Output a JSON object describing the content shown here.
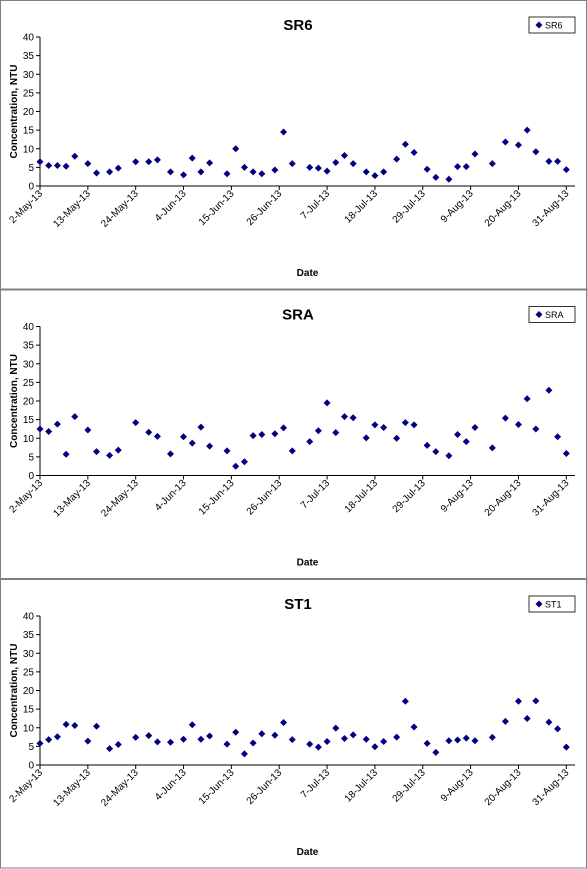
{
  "chart_data": [
    {
      "type": "scatter",
      "title": "SR6",
      "x_label": "Date",
      "y_label": "Concentration, NTU",
      "x": [
        "2-May-13",
        "4-May-13",
        "6-May-13",
        "8-May-13",
        "10-May-13",
        "13-May-13",
        "15-May-13",
        "18-May-13",
        "20-May-13",
        "24-May-13",
        "27-May-13",
        "29-May-13",
        "1-Jun-13",
        "4-Jun-13",
        "6-Jun-13",
        "8-Jun-13",
        "10-Jun-13",
        "14-Jun-13",
        "16-Jun-13",
        "18-Jun-13",
        "20-Jun-13",
        "22-Jun-13",
        "25-Jun-13",
        "27-Jun-13",
        "29-Jun-13",
        "3-Jul-13",
        "5-Jul-13",
        "7-Jul-13",
        "9-Jul-13",
        "11-Jul-13",
        "13-Jul-13",
        "16-Jul-13",
        "18-Jul-13",
        "20-Jul-13",
        "23-Jul-13",
        "25-Jul-13",
        "27-Jul-13",
        "30-Jul-13",
        "1-Aug-13",
        "4-Aug-13",
        "6-Aug-13",
        "8-Aug-13",
        "10-Aug-13",
        "14-Aug-13",
        "17-Aug-13",
        "20-Aug-13",
        "22-Aug-13",
        "24-Aug-13",
        "27-Aug-13",
        "29-Aug-13",
        "31-Aug-13"
      ],
      "series": [
        {
          "name": "SR6",
          "color": "#000080",
          "values": [
            6.5,
            5.5,
            5.5,
            5.3,
            8,
            6,
            3.5,
            3.8,
            4.8,
            6.5,
            6.5,
            7,
            3.8,
            3,
            7.5,
            3.8,
            6.2,
            3.3,
            10,
            5,
            3.8,
            3.3,
            4.3,
            14.5,
            6,
            5,
            4.8,
            4,
            6.3,
            8.2,
            6,
            3.8,
            2.8,
            3.8,
            7.2,
            11.2,
            9,
            4.5,
            2.3,
            1.8,
            5.2,
            5.2,
            8.6,
            6,
            11.8,
            11,
            15,
            9.2,
            6.6,
            6.6,
            4.4
          ]
        }
      ],
      "xlim": [
        "2-May-13",
        "2-Sep-13"
      ],
      "ylim": [
        0,
        40
      ],
      "xticks": [
        "2-May-13",
        "13-May-13",
        "24-May-13",
        "4-Jun-13",
        "15-Jun-13",
        "26-Jun-13",
        "7-Jul-13",
        "18-Jul-13",
        "29-Jul-13",
        "9-Aug-13",
        "20-Aug-13",
        "31-Aug-13"
      ],
      "yticks": [
        0,
        5,
        10,
        15,
        20,
        25,
        30,
        35,
        40
      ],
      "grid": false,
      "legend": "top-right"
    },
    {
      "type": "scatter",
      "title": "SRA",
      "x_label": "Date",
      "y_label": "Concentration, NTU",
      "x": [
        "2-May-13",
        "4-May-13",
        "6-May-13",
        "8-May-13",
        "10-May-13",
        "13-May-13",
        "15-May-13",
        "18-May-13",
        "20-May-13",
        "24-May-13",
        "27-May-13",
        "29-May-13",
        "1-Jun-13",
        "4-Jun-13",
        "6-Jun-13",
        "8-Jun-13",
        "10-Jun-13",
        "14-Jun-13",
        "16-Jun-13",
        "18-Jun-13",
        "20-Jun-13",
        "22-Jun-13",
        "25-Jun-13",
        "27-Jun-13",
        "29-Jun-13",
        "3-Jul-13",
        "5-Jul-13",
        "7-Jul-13",
        "9-Jul-13",
        "11-Jul-13",
        "13-Jul-13",
        "16-Jul-13",
        "18-Jul-13",
        "20-Jul-13",
        "23-Jul-13",
        "25-Jul-13",
        "27-Jul-13",
        "30-Jul-13",
        "1-Aug-13",
        "4-Aug-13",
        "6-Aug-13",
        "8-Aug-13",
        "10-Aug-13",
        "14-Aug-13",
        "17-Aug-13",
        "20-Aug-13",
        "22-Aug-13",
        "24-Aug-13",
        "27-Aug-13",
        "29-Aug-13",
        "31-Aug-13"
      ],
      "series": [
        {
          "name": "SRA",
          "color": "#000080",
          "values": [
            12.5,
            11.8,
            13.8,
            5.7,
            15.8,
            12.2,
            6.4,
            5.4,
            6.8,
            14.2,
            11.6,
            10.5,
            5.8,
            10.4,
            8.7,
            13,
            7.9,
            6.6,
            2.5,
            3.7,
            10.7,
            11,
            11.2,
            12.8,
            6.6,
            9.1,
            12,
            19.5,
            11.5,
            15.8,
            15.5,
            10.1,
            13.6,
            12.9,
            10,
            14.2,
            13.6,
            8.1,
            6.4,
            5.3,
            11,
            9.1,
            12.9,
            7.4,
            15.4,
            13.7,
            20.6,
            12.5,
            22.9,
            10.4,
            5.9
          ]
        }
      ],
      "xlim": [
        "2-May-13",
        "2-Sep-13"
      ],
      "ylim": [
        0,
        40
      ],
      "xticks": [
        "2-May-13",
        "13-May-13",
        "24-May-13",
        "4-Jun-13",
        "15-Jun-13",
        "26-Jun-13",
        "7-Jul-13",
        "18-Jul-13",
        "29-Jul-13",
        "9-Aug-13",
        "20-Aug-13",
        "31-Aug-13"
      ],
      "yticks": [
        0,
        5,
        10,
        15,
        20,
        25,
        30,
        35,
        40
      ],
      "grid": false,
      "legend": "top-right"
    },
    {
      "type": "scatter",
      "title": "ST1",
      "x_label": "Date",
      "y_label": "Concentration, NTU",
      "x": [
        "2-May-13",
        "4-May-13",
        "6-May-13",
        "8-May-13",
        "10-May-13",
        "13-May-13",
        "15-May-13",
        "18-May-13",
        "20-May-13",
        "24-May-13",
        "27-May-13",
        "29-May-13",
        "1-Jun-13",
        "4-Jun-13",
        "6-Jun-13",
        "8-Jun-13",
        "10-Jun-13",
        "14-Jun-13",
        "16-Jun-13",
        "18-Jun-13",
        "20-Jun-13",
        "22-Jun-13",
        "25-Jun-13",
        "27-Jun-13",
        "29-Jun-13",
        "3-Jul-13",
        "5-Jul-13",
        "7-Jul-13",
        "9-Jul-13",
        "11-Jul-13",
        "13-Jul-13",
        "16-Jul-13",
        "18-Jul-13",
        "20-Jul-13",
        "23-Jul-13",
        "25-Jul-13",
        "27-Jul-13",
        "30-Jul-13",
        "1-Aug-13",
        "4-Aug-13",
        "6-Aug-13",
        "8-Aug-13",
        "10-Aug-13",
        "14-Aug-13",
        "17-Aug-13",
        "20-Aug-13",
        "22-Aug-13",
        "24-Aug-13",
        "27-Aug-13",
        "29-Aug-13",
        "31-Aug-13"
      ],
      "series": [
        {
          "name": "ST1",
          "color": "#000080",
          "values": [
            5.8,
            6.8,
            7.6,
            10.9,
            10.6,
            6.4,
            10.4,
            4.4,
            5.5,
            7.4,
            7.9,
            6.2,
            6.1,
            6.9,
            10.8,
            6.9,
            7.8,
            5.6,
            8.8,
            3,
            5.9,
            8.4,
            8,
            11.4,
            6.8,
            5.6,
            4.8,
            6.3,
            9.9,
            7.1,
            8.1,
            6.9,
            4.9,
            6.3,
            7.5,
            17.1,
            10.2,
            5.8,
            3.4,
            6.5,
            6.7,
            7.2,
            6.5,
            7.4,
            11.7,
            17.1,
            12.5,
            17.2,
            11.5,
            9.7,
            4.8
          ]
        }
      ],
      "xlim": [
        "2-May-13",
        "2-Sep-13"
      ],
      "ylim": [
        0,
        40
      ],
      "xticks": [
        "2-May-13",
        "13-May-13",
        "24-May-13",
        "4-Jun-13",
        "15-Jun-13",
        "26-Jun-13",
        "7-Jul-13",
        "18-Jul-13",
        "29-Jul-13",
        "9-Aug-13",
        "20-Aug-13",
        "31-Aug-13"
      ],
      "yticks": [
        0,
        5,
        10,
        15,
        20,
        25,
        30,
        35,
        40
      ],
      "grid": false,
      "legend": "top-right"
    }
  ]
}
